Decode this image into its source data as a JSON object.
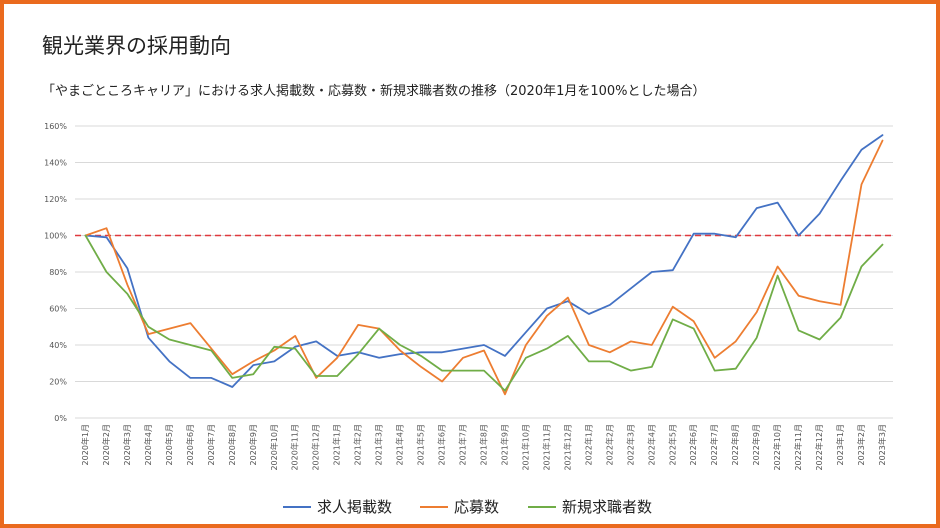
{
  "page_title": "観光業界の採用動向",
  "colors": {
    "frame": "#ea6a1e",
    "grid": "#d9d9d9",
    "reference_line": "#e0393e",
    "series": [
      "#4472c4",
      "#ed7d31",
      "#70ad47"
    ]
  },
  "chart_data": {
    "type": "line",
    "title": "「やまごところキャリア」における求人掲載数・応募数・新規求職者数の推移（2020年1月を100%とした場合）",
    "xlabel": "",
    "ylabel": "",
    "ylim": [
      0,
      160
    ],
    "y_ticks": [
      "0%",
      "20%",
      "40%",
      "60%",
      "80%",
      "100%",
      "120%",
      "140%",
      "160%"
    ],
    "reference_value": 100,
    "grid": true,
    "legend_position": "bottom",
    "categories": [
      "2020年1月",
      "2020年2月",
      "2020年3月",
      "2020年4月",
      "2020年5月",
      "2020年6月",
      "2020年7月",
      "2020年8月",
      "2020年9月",
      "2020年10月",
      "2020年11月",
      "2020年12月",
      "2021年1月",
      "2021年2月",
      "2021年3月",
      "2021年4月",
      "2021年5月",
      "2021年6月",
      "2021年7月",
      "2021年8月",
      "2021年9月",
      "2021年10月",
      "2021年11月",
      "2021年12月",
      "2022年1月",
      "2022年2月",
      "2022年3月",
      "2022年4月",
      "2022年5月",
      "2022年6月",
      "2022年7月",
      "2022年8月",
      "2022年9月",
      "2022年10月",
      "2022年11月",
      "2022年12月",
      "2023年1月",
      "2023年2月",
      "2023年3月"
    ],
    "series": [
      {
        "name": "求人掲載数",
        "values": [
          100,
          99,
          82,
          44,
          31,
          22,
          22,
          17,
          29,
          31,
          39,
          42,
          34,
          36,
          33,
          35,
          36,
          36,
          38,
          40,
          34,
          47,
          60,
          64,
          57,
          62,
          71,
          80,
          81,
          101,
          101,
          99,
          115,
          118,
          100,
          112,
          130,
          147,
          155
        ]
      },
      {
        "name": "応募数",
        "values": [
          100,
          104,
          73,
          46,
          49,
          52,
          38,
          24,
          31,
          37,
          45,
          22,
          33,
          51,
          49,
          37,
          28,
          20,
          33,
          37,
          13,
          40,
          56,
          66,
          40,
          36,
          42,
          40,
          61,
          53,
          33,
          42,
          58,
          83,
          67,
          64,
          62,
          128,
          152
        ]
      },
      {
        "name": "新規求職者数",
        "values": [
          100,
          80,
          68,
          50,
          43,
          40,
          37,
          22,
          24,
          39,
          38,
          23,
          23,
          35,
          49,
          40,
          34,
          26,
          26,
          26,
          15,
          33,
          38,
          45,
          31,
          31,
          26,
          28,
          54,
          49,
          26,
          27,
          44,
          78,
          48,
          43,
          55,
          83,
          95
        ]
      }
    ]
  }
}
